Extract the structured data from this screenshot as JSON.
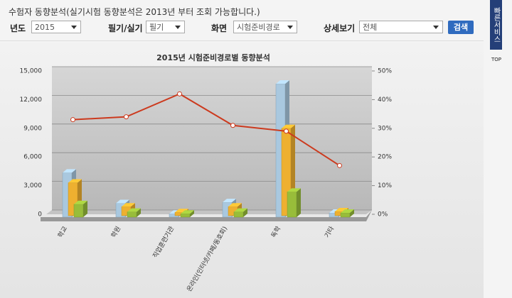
{
  "header": {
    "title": "수험자 동향분석(실기시험 동향분석은 2013년 부터 조회 가능합니다.)"
  },
  "filters": [
    {
      "label": "년도",
      "value": "2015"
    },
    {
      "label": "필기/실기",
      "value": "필기"
    },
    {
      "label": "화면",
      "value": "시험준비경로"
    },
    {
      "label": "상세보기",
      "value": "전체"
    },
    "검색"
  ],
  "sidebar": {
    "title": "빠른서비스",
    "top": "TOP"
  },
  "chart_data": {
    "type": "bar",
    "title": "2015년 시험준비경로별 동향분석",
    "categories": [
      "학교",
      "학원",
      "직업훈련기관",
      "온라인(인터넷/카페/동호회)",
      "독학",
      "기타"
    ],
    "series": [
      {
        "color": "#a9c8df",
        "values": [
          4500,
          1300,
          200,
          1400,
          13800,
          300
        ]
      },
      {
        "color": "#eeb030",
        "values": [
          3300,
          800,
          200,
          800,
          9000,
          300
        ]
      },
      {
        "color": "#98bd3a",
        "values": [
          1200,
          400,
          200,
          400,
          2500,
          300
        ]
      },
      {
        "type": "line",
        "axis": "y2",
        "color": "#cc3a1e",
        "values": [
          33,
          34,
          42,
          31,
          29,
          17
        ]
      }
    ],
    "ylim": [
      0,
      15000
    ],
    "yticks": [
      0,
      {
        "value": 3000,
        "label": "3,000"
      },
      {
        "value": 6000,
        "label": "6,000"
      },
      {
        "value": 9000,
        "label": "9,000"
      },
      {
        "value": 12000,
        "label": "12,000"
      },
      {
        "value": 15000,
        "label": "15,000"
      }
    ],
    "y2lim": [
      0,
      50
    ],
    "y2ticks": [
      {
        "value": 0,
        "label": "0%"
      },
      {
        "value": 10,
        "label": "10%"
      },
      {
        "value": 20,
        "label": "20%"
      },
      {
        "value": 30,
        "label": "30%"
      },
      {
        "value": 40,
        "label": "40%"
      },
      {
        "value": 50,
        "label": "50%"
      }
    ],
    "grid": true
  }
}
